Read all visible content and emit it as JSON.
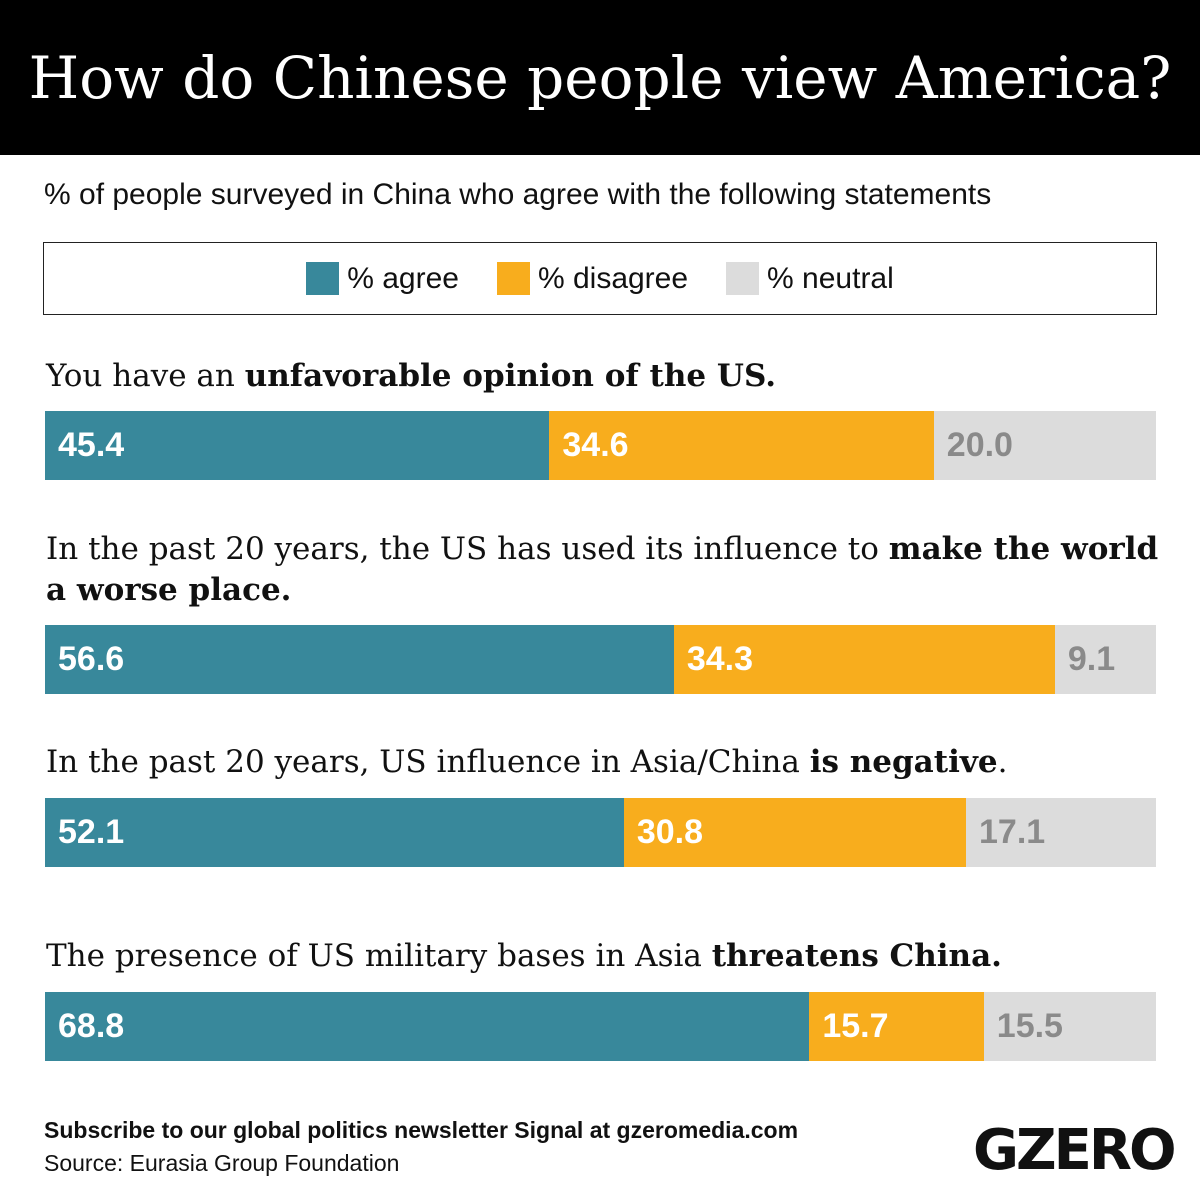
{
  "title": "How do Chinese people view America?",
  "subtitle": "% of people surveyed in China who agree with the following statements",
  "footer": {
    "subscribe": "Subscribe to our global politics newsletter Signal at gzeromedia.com",
    "source": "Source: Eurasia Group Foundation",
    "logo": "GZERO"
  },
  "chart_data": {
    "type": "bar",
    "stacked": true,
    "orientation": "horizontal",
    "legend_position": "top",
    "legend": [
      "% agree",
      "% disagree",
      "% neutral"
    ],
    "colors": {
      "agree": "#38889b",
      "disagree": "#f8ad1d",
      "neutral": "#dcdcdc"
    },
    "categories": [
      [
        {
          "text": "You have an ",
          "bold": false
        },
        {
          "text": "unfavorable opinion of the US.",
          "bold": true
        }
      ],
      [
        {
          "text": "In the past 20 years, the US has used its influence to ",
          "bold": false
        },
        {
          "text": "make the world a worse place.",
          "bold": true
        }
      ],
      [
        {
          "text": "In the past 20 years, US influence in Asia/China ",
          "bold": false
        },
        {
          "text": "is negative",
          "bold": true
        },
        {
          "text": ".",
          "bold": false
        }
      ],
      [
        {
          "text": "The presence of US military bases in Asia ",
          "bold": false
        },
        {
          "text": "threatens China.",
          "bold": true
        }
      ]
    ],
    "series": [
      {
        "name": "% agree",
        "key": "agree",
        "values": [
          "45.4",
          "56.6",
          "52.1",
          "68.8"
        ]
      },
      {
        "name": "% disagree",
        "key": "disagree",
        "values": [
          "34.6",
          "34.3",
          "30.8",
          "15.7"
        ]
      },
      {
        "name": "% neutral",
        "key": "neutral",
        "values": [
          "20.0",
          "9.1",
          "17.1",
          "15.5"
        ]
      }
    ]
  }
}
